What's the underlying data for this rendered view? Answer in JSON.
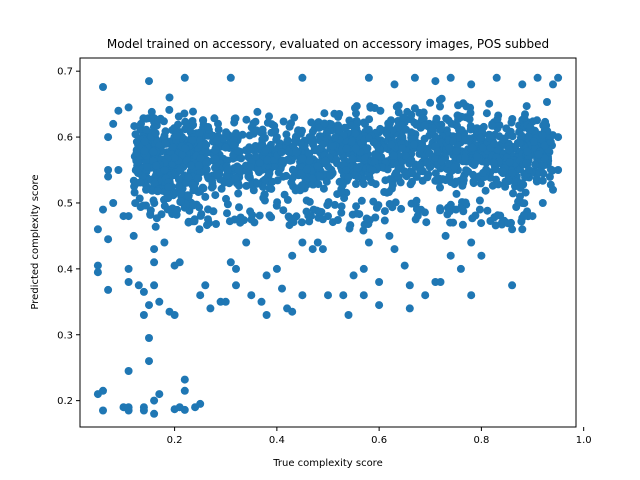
{
  "chart_data": {
    "type": "scatter",
    "title": "Model trained on accessory, evaluated on accessory images, POS subbed",
    "xlabel": "True complexity score",
    "ylabel": "Predicted complexity score",
    "xlim": [
      0.015,
      0.985
    ],
    "ylim": [
      0.16,
      0.72
    ],
    "xticks": [
      0.2,
      0.4,
      0.6,
      0.8,
      1.0
    ],
    "xtick_labels": [
      "0.2",
      "0.4",
      "0.6",
      "0.8",
      "1.0"
    ],
    "yticks": [
      0.2,
      0.3,
      0.4,
      0.5,
      0.6,
      0.7
    ],
    "ytick_labels": [
      "0.2",
      "0.3",
      "0.4",
      "0.5",
      "0.6",
      "0.7"
    ],
    "grid": false,
    "point_color": "#1f77b4",
    "points": [
      [
        0.06,
        0.676
      ],
      [
        0.06,
        0.185
      ],
      [
        0.05,
        0.21
      ],
      [
        0.06,
        0.215
      ],
      [
        0.05,
        0.405
      ],
      [
        0.05,
        0.395
      ],
      [
        0.05,
        0.46
      ],
      [
        0.07,
        0.368
      ],
      [
        0.07,
        0.445
      ],
      [
        0.1,
        0.19
      ],
      [
        0.11,
        0.185
      ],
      [
        0.11,
        0.19
      ],
      [
        0.11,
        0.245
      ],
      [
        0.11,
        0.38
      ],
      [
        0.11,
        0.4
      ],
      [
        0.12,
        0.45
      ],
      [
        0.1,
        0.48
      ],
      [
        0.11,
        0.48
      ],
      [
        0.14,
        0.19
      ],
      [
        0.14,
        0.185
      ],
      [
        0.16,
        0.18
      ],
      [
        0.16,
        0.2
      ],
      [
        0.17,
        0.21
      ],
      [
        0.15,
        0.26
      ],
      [
        0.15,
        0.295
      ],
      [
        0.14,
        0.33
      ],
      [
        0.15,
        0.345
      ],
      [
        0.14,
        0.365
      ],
      [
        0.13,
        0.375
      ],
      [
        0.16,
        0.375
      ],
      [
        0.17,
        0.35
      ],
      [
        0.16,
        0.41
      ],
      [
        0.16,
        0.43
      ],
      [
        0.18,
        0.44
      ],
      [
        0.19,
        0.335
      ],
      [
        0.2,
        0.33
      ],
      [
        0.2,
        0.405
      ],
      [
        0.21,
        0.41
      ],
      [
        0.2,
        0.187
      ],
      [
        0.21,
        0.19
      ],
      [
        0.22,
        0.186
      ],
      [
        0.24,
        0.19
      ],
      [
        0.25,
        0.195
      ],
      [
        0.22,
        0.232
      ],
      [
        0.22,
        0.215
      ],
      [
        0.22,
        0.5
      ],
      [
        0.24,
        0.53
      ],
      [
        0.26,
        0.375
      ],
      [
        0.25,
        0.36
      ],
      [
        0.27,
        0.34
      ],
      [
        0.29,
        0.35
      ],
      [
        0.3,
        0.35
      ],
      [
        0.31,
        0.41
      ],
      [
        0.32,
        0.4
      ],
      [
        0.32,
        0.375
      ],
      [
        0.35,
        0.36
      ],
      [
        0.34,
        0.44
      ],
      [
        0.37,
        0.35
      ],
      [
        0.38,
        0.33
      ],
      [
        0.38,
        0.39
      ],
      [
        0.4,
        0.4
      ],
      [
        0.42,
        0.34
      ],
      [
        0.43,
        0.335
      ],
      [
        0.41,
        0.37
      ],
      [
        0.45,
        0.36
      ],
      [
        0.43,
        0.42
      ],
      [
        0.45,
        0.44
      ],
      [
        0.47,
        0.43
      ],
      [
        0.48,
        0.44
      ],
      [
        0.5,
        0.36
      ],
      [
        0.49,
        0.43
      ],
      [
        0.5,
        0.48
      ],
      [
        0.53,
        0.36
      ],
      [
        0.55,
        0.39
      ],
      [
        0.54,
        0.33
      ],
      [
        0.57,
        0.36
      ],
      [
        0.57,
        0.4
      ],
      [
        0.6,
        0.38
      ],
      [
        0.6,
        0.345
      ],
      [
        0.58,
        0.44
      ],
      [
        0.62,
        0.45
      ],
      [
        0.63,
        0.43
      ],
      [
        0.65,
        0.405
      ],
      [
        0.66,
        0.375
      ],
      [
        0.66,
        0.34
      ],
      [
        0.69,
        0.36
      ],
      [
        0.71,
        0.38
      ],
      [
        0.72,
        0.38
      ],
      [
        0.73,
        0.45
      ],
      [
        0.74,
        0.42
      ],
      [
        0.76,
        0.4
      ],
      [
        0.78,
        0.36
      ],
      [
        0.78,
        0.44
      ],
      [
        0.8,
        0.42
      ],
      [
        0.84,
        0.47
      ],
      [
        0.86,
        0.375
      ],
      [
        0.86,
        0.46
      ],
      [
        0.88,
        0.46
      ],
      [
        0.88,
        0.5
      ],
      [
        0.22,
        0.69
      ],
      [
        0.31,
        0.69
      ],
      [
        0.45,
        0.69
      ],
      [
        0.58,
        0.69
      ],
      [
        0.67,
        0.69
      ],
      [
        0.74,
        0.69
      ],
      [
        0.83,
        0.69
      ],
      [
        0.91,
        0.69
      ],
      [
        0.95,
        0.69
      ],
      [
        0.15,
        0.685
      ],
      [
        0.19,
        0.66
      ],
      [
        0.11,
        0.645
      ],
      [
        0.09,
        0.64
      ],
      [
        0.94,
        0.68
      ],
      [
        0.88,
        0.68
      ],
      [
        0.78,
        0.68
      ],
      [
        0.71,
        0.685
      ],
      [
        0.63,
        0.68
      ],
      [
        0.07,
        0.6
      ],
      [
        0.08,
        0.62
      ],
      [
        0.09,
        0.55
      ],
      [
        0.07,
        0.55
      ],
      [
        0.06,
        0.49
      ],
      [
        0.08,
        0.5
      ],
      [
        0.07,
        0.54
      ],
      [
        0.95,
        0.55
      ],
      [
        0.95,
        0.6
      ],
      [
        0.93,
        0.57
      ],
      [
        0.94,
        0.52
      ],
      [
        0.92,
        0.5
      ],
      [
        0.9,
        0.48
      ]
    ],
    "clusters": [
      {
        "count": 420,
        "x": [
          0.12,
          0.26
        ],
        "y": [
          0.47,
          0.66
        ]
      },
      {
        "count": 360,
        "x": [
          0.26,
          0.48
        ],
        "y": [
          0.48,
          0.65
        ]
      },
      {
        "count": 900,
        "x": [
          0.48,
          0.94
        ],
        "y": [
          0.49,
          0.67
        ]
      },
      {
        "count": 140,
        "x": [
          0.15,
          0.9
        ],
        "y": [
          0.45,
          0.52
        ]
      }
    ]
  }
}
